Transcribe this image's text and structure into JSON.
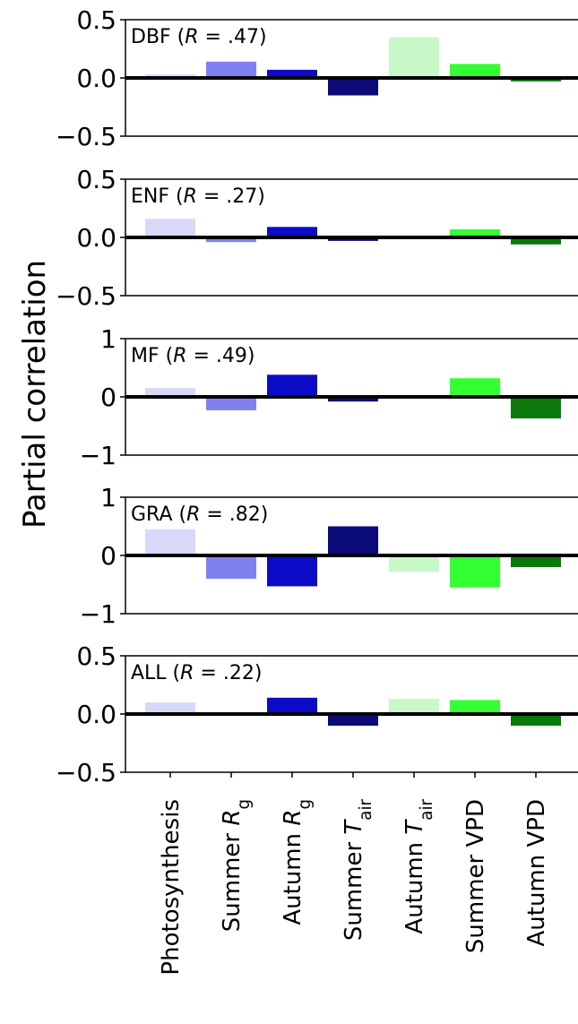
{
  "ylabel": "Partial correlation",
  "categories": [
    [
      {
        "text": "Photosynthesis"
      }
    ],
    [
      {
        "text": "Summer "
      },
      {
        "text": "R",
        "style": "italic"
      },
      {
        "text": "g",
        "style": "sub"
      }
    ],
    [
      {
        "text": "Autumn "
      },
      {
        "text": "R",
        "style": "italic"
      },
      {
        "text": "g",
        "style": "sub"
      }
    ],
    [
      {
        "text": "Summer "
      },
      {
        "text": "T",
        "style": "italic"
      },
      {
        "text": "air",
        "style": "sub"
      }
    ],
    [
      {
        "text": "Autumn "
      },
      {
        "text": "T",
        "style": "italic"
      },
      {
        "text": "air",
        "style": "sub"
      }
    ],
    [
      {
        "text": "Summer VPD"
      }
    ],
    [
      {
        "text": "Autumn VPD"
      }
    ]
  ],
  "colors": [
    "#d8d8f8",
    "#8080f0",
    "#0c0cc8",
    "#0a0a78",
    "#c8f8c8",
    "#33ff33",
    "#0a780a"
  ],
  "chart_data": [
    {
      "type": "bar",
      "title": [
        {
          "text": "DBF ("
        },
        {
          "text": "R",
          "style": "italic"
        },
        {
          "text": " = .47)"
        }
      ],
      "values": [
        0.03,
        0.14,
        0.07,
        -0.15,
        0.35,
        0.12,
        -0.03
      ],
      "ylim": [
        -0.5,
        0.5
      ],
      "yticks": [
        {
          "value": -0.5,
          "label": "−0.5"
        },
        {
          "value": 0,
          "label": "0.0"
        },
        {
          "value": 0.5,
          "label": "0.5"
        }
      ]
    },
    {
      "type": "bar",
      "title": [
        {
          "text": "ENF ("
        },
        {
          "text": "R",
          "style": "italic"
        },
        {
          "text": " = .27)"
        }
      ],
      "values": [
        0.16,
        -0.04,
        0.09,
        -0.03,
        0,
        0.07,
        -0.06
      ],
      "ylim": [
        -0.5,
        0.5
      ],
      "yticks": [
        {
          "value": -0.5,
          "label": "−0.5"
        },
        {
          "value": 0,
          "label": "0.0"
        },
        {
          "value": 0.5,
          "label": "0.5"
        }
      ]
    },
    {
      "type": "bar",
      "title": [
        {
          "text": "MF ("
        },
        {
          "text": "R",
          "style": "italic"
        },
        {
          "text": " = .49)"
        }
      ],
      "values": [
        0.15,
        -0.23,
        0.38,
        -0.08,
        0,
        0.32,
        -0.37
      ],
      "ylim": [
        -1,
        1
      ],
      "yticks": [
        {
          "value": -1,
          "label": "−1"
        },
        0,
        1
      ]
    },
    {
      "type": "bar",
      "title": [
        {
          "text": "GRA ("
        },
        {
          "text": "R",
          "style": "italic"
        },
        {
          "text": " = .82)"
        }
      ],
      "values": [
        0.45,
        -0.4,
        -0.53,
        0.5,
        -0.28,
        -0.55,
        -0.2
      ],
      "ylim": [
        -1,
        1
      ],
      "yticks": [
        {
          "value": -1,
          "label": "−1"
        },
        0,
        1
      ]
    },
    {
      "type": "bar",
      "title": [
        {
          "text": "ALL ("
        },
        {
          "text": "R",
          "style": "italic"
        },
        {
          "text": " = .22)"
        }
      ],
      "values": [
        0.1,
        0,
        0.14,
        -0.1,
        0.13,
        0.12,
        -0.1
      ],
      "ylim": [
        -0.5,
        0.5
      ],
      "yticks": [
        {
          "value": -0.5,
          "label": "−0.5"
        },
        {
          "value": 0,
          "label": "0.0"
        },
        {
          "value": 0.5,
          "label": "0.5"
        }
      ]
    }
  ]
}
